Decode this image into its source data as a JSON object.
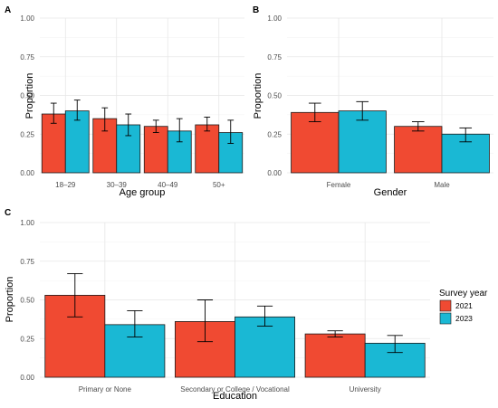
{
  "colors": {
    "2021": "#f04a32",
    "2023": "#1ab8d4"
  },
  "legend": {
    "title": "Survey year",
    "items": [
      {
        "label": "2021",
        "color": "#f04a32"
      },
      {
        "label": "2023",
        "color": "#1ab8d4"
      }
    ]
  },
  "chart_data": [
    {
      "panel": "A",
      "type": "bar",
      "xlabel": "Age group",
      "ylabel": "Proportion",
      "ylim": [
        0,
        1
      ],
      "yticks": [
        "0.00",
        "0.25",
        "0.50",
        "0.75",
        "1.00"
      ],
      "categories": [
        "18–29",
        "30–39",
        "40–49",
        "50+"
      ],
      "series": [
        {
          "name": "2021",
          "values": [
            0.38,
            0.35,
            0.3,
            0.31
          ],
          "lower": [
            0.32,
            0.27,
            0.26,
            0.27
          ],
          "upper": [
            0.45,
            0.42,
            0.34,
            0.36
          ]
        },
        {
          "name": "2023",
          "values": [
            0.4,
            0.31,
            0.27,
            0.26
          ],
          "lower": [
            0.34,
            0.24,
            0.2,
            0.19
          ],
          "upper": [
            0.47,
            0.38,
            0.35,
            0.34
          ]
        }
      ]
    },
    {
      "panel": "B",
      "type": "bar",
      "xlabel": "Gender",
      "ylabel": "Proportion",
      "ylim": [
        0,
        1
      ],
      "yticks": [
        "0.00",
        "0.25",
        "0.50",
        "0.75",
        "1.00"
      ],
      "categories": [
        "Female",
        "Male"
      ],
      "series": [
        {
          "name": "2021",
          "values": [
            0.39,
            0.3
          ],
          "lower": [
            0.33,
            0.27
          ],
          "upper": [
            0.45,
            0.33
          ]
        },
        {
          "name": "2023",
          "values": [
            0.4,
            0.25
          ],
          "lower": [
            0.34,
            0.2
          ],
          "upper": [
            0.46,
            0.29
          ]
        }
      ]
    },
    {
      "panel": "C",
      "type": "bar",
      "xlabel": "Education",
      "ylabel": "Proportion",
      "ylim": [
        0,
        1
      ],
      "yticks": [
        "0.00",
        "0.25",
        "0.50",
        "0.75",
        "1.00"
      ],
      "categories": [
        "Primary or None",
        "Secondary or College / Vocational",
        "University"
      ],
      "series": [
        {
          "name": "2021",
          "values": [
            0.53,
            0.36,
            0.28
          ],
          "lower": [
            0.39,
            0.23,
            0.26
          ],
          "upper": [
            0.67,
            0.5,
            0.3
          ]
        },
        {
          "name": "2023",
          "values": [
            0.34,
            0.39,
            0.22
          ],
          "lower": [
            0.26,
            0.33,
            0.16
          ],
          "upper": [
            0.43,
            0.46,
            0.27
          ]
        }
      ]
    }
  ]
}
